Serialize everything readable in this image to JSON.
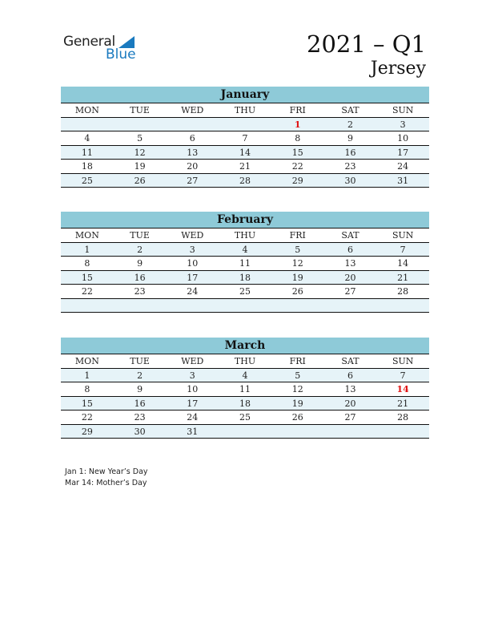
{
  "logo": {
    "general": "General",
    "blue": "Blue"
  },
  "title": "2021 – Q1",
  "country": "Jersey",
  "colors": {
    "header_band": "#8ecad8",
    "stripe": "#e6f3f8",
    "holiday": "#e01010",
    "brand": "#1a7abf"
  },
  "weekdays": [
    "MON",
    "TUE",
    "WED",
    "THU",
    "FRI",
    "SAT",
    "SUN"
  ],
  "months": [
    {
      "name": "January",
      "weeks": [
        [
          "",
          "",
          "",
          "",
          "1",
          "2",
          "3"
        ],
        [
          "4",
          "5",
          "6",
          "7",
          "8",
          "9",
          "10"
        ],
        [
          "11",
          "12",
          "13",
          "14",
          "15",
          "16",
          "17"
        ],
        [
          "18",
          "19",
          "20",
          "21",
          "22",
          "23",
          "24"
        ],
        [
          "25",
          "26",
          "27",
          "28",
          "29",
          "30",
          "31"
        ]
      ],
      "holidays": [
        "1"
      ]
    },
    {
      "name": "February",
      "weeks": [
        [
          "1",
          "2",
          "3",
          "4",
          "5",
          "6",
          "7"
        ],
        [
          "8",
          "9",
          "10",
          "11",
          "12",
          "13",
          "14"
        ],
        [
          "15",
          "16",
          "17",
          "18",
          "19",
          "20",
          "21"
        ],
        [
          "22",
          "23",
          "24",
          "25",
          "26",
          "27",
          "28"
        ],
        [
          "",
          "",
          "",
          "",
          "",
          "",
          ""
        ]
      ],
      "holidays": []
    },
    {
      "name": "March",
      "weeks": [
        [
          "1",
          "2",
          "3",
          "4",
          "5",
          "6",
          "7"
        ],
        [
          "8",
          "9",
          "10",
          "11",
          "12",
          "13",
          "14"
        ],
        [
          "15",
          "16",
          "17",
          "18",
          "19",
          "20",
          "21"
        ],
        [
          "22",
          "23",
          "24",
          "25",
          "26",
          "27",
          "28"
        ],
        [
          "29",
          "30",
          "31",
          "",
          "",
          "",
          ""
        ]
      ],
      "holidays": [
        "14"
      ]
    }
  ],
  "notes": [
    "Jan 1: New Year’s Day",
    "Mar 14: Mother’s Day"
  ]
}
